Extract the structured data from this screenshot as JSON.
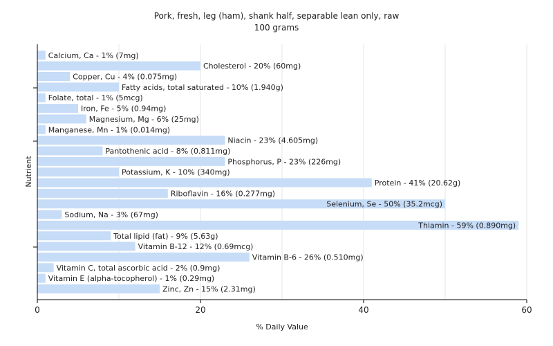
{
  "chart_data": {
    "type": "bar",
    "orientation": "horizontal",
    "title": "Pork, fresh, leg (ham), shank half, separable lean only, raw",
    "subtitle": "100 grams",
    "xlabel": "% Daily Value",
    "ylabel": "Nutrient",
    "xlim": [
      0,
      60
    ],
    "xticks": [
      0,
      20,
      40,
      60
    ],
    "grid": true,
    "bar_color": "#c6dcf7",
    "categories": [
      "Calcium, Ca",
      "Cholesterol",
      "Copper, Cu",
      "Fatty acids, total saturated",
      "Folate, total",
      "Iron, Fe",
      "Magnesium, Mg",
      "Manganese, Mn",
      "Niacin",
      "Pantothenic acid",
      "Phosphorus, P",
      "Potassium, K",
      "Protein",
      "Riboflavin",
      "Selenium, Se",
      "Sodium, Na",
      "Thiamin",
      "Total lipid (fat)",
      "Vitamin B-12",
      "Vitamin B-6",
      "Vitamin C, total ascorbic acid",
      "Vitamin E (alpha-tocopherol)",
      "Zinc, Zn"
    ],
    "values": [
      1,
      20,
      4,
      10,
      1,
      5,
      6,
      1,
      23,
      8,
      23,
      10,
      41,
      16,
      50,
      3,
      59,
      9,
      12,
      26,
      2,
      1,
      15
    ],
    "labels": [
      "Calcium, Ca - 1% (7mg)",
      "Cholesterol - 20% (60mg)",
      "Copper, Cu - 4% (0.075mg)",
      "Fatty acids, total saturated - 10% (1.940g)",
      "Folate, total - 1% (5mcg)",
      "Iron, Fe - 5% (0.94mg)",
      "Magnesium, Mg - 6% (25mg)",
      "Manganese, Mn - 1% (0.014mg)",
      "Niacin - 23% (4.605mg)",
      "Pantothenic acid - 8% (0.811mg)",
      "Phosphorus, P - 23% (226mg)",
      "Potassium, K - 10% (340mg)",
      "Protein - 41% (20.62g)",
      "Riboflavin - 16% (0.277mg)",
      "Selenium, Se - 50% (35.2mcg)",
      "Sodium, Na - 3% (67mg)",
      "Thiamin - 59% (0.890mg)",
      "Total lipid (fat) - 9% (5.63g)",
      "Vitamin B-12 - 12% (0.69mcg)",
      "Vitamin B-6 - 26% (0.510mg)",
      "Vitamin C, total ascorbic acid - 2% (0.9mg)",
      "Vitamin E (alpha-tocopherol) - 1% (0.29mg)",
      "Zinc, Zn - 15% (2.31mg)"
    ]
  }
}
